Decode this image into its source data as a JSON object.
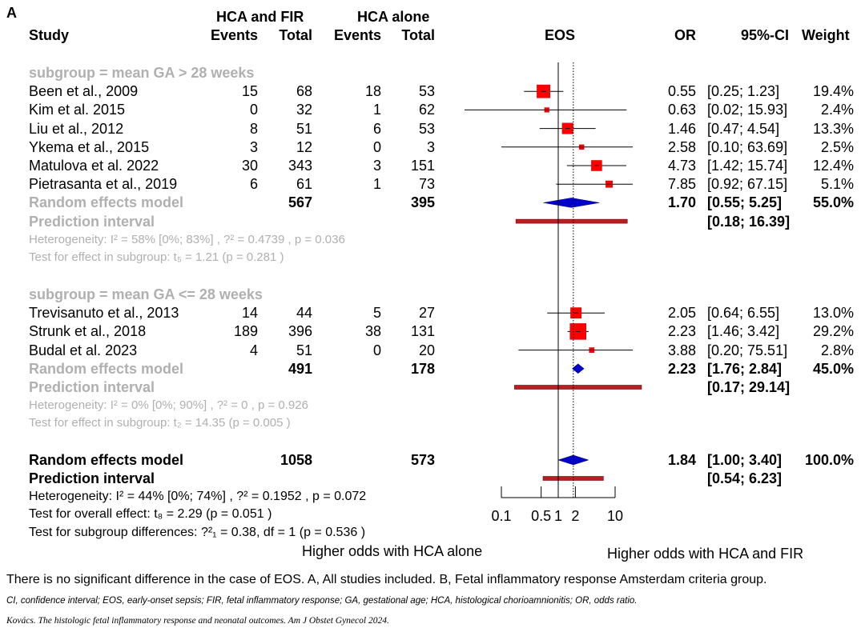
{
  "panel_label": "A",
  "headers": {
    "study": "Study",
    "group1": "HCA and FIR",
    "group2": "HCA alone",
    "events": "Events",
    "total": "Total",
    "outcome": "EOS",
    "or": "OR",
    "ci": "95%-CI",
    "weight": "Weight"
  },
  "chart_data": {
    "type": "forest",
    "scale": "log",
    "x_ticks": [
      0.1,
      0.5,
      1,
      2,
      10
    ],
    "x_tick_labels": [
      "0.1",
      "0.5",
      "1",
      "2",
      "10"
    ],
    "null_value": 1,
    "overall_dotted_line": 1.84,
    "left_label": "Higher odds with HCA alone",
    "right_label": "Higher odds with HCA and FIR",
    "subgroups": [
      {
        "title": "subgroup = mean GA > 28 weeks",
        "studies": [
          {
            "name": "Been et al., 2009",
            "e1": "15",
            "t1": "68",
            "e2": "18",
            "t2": "53",
            "or": 0.55,
            "lo": 0.25,
            "hi": 1.23,
            "or_text": "0.55",
            "ci_text": "[0.25;  1.23]",
            "weight": "19.4%"
          },
          {
            "name": "Kim et al. 2015",
            "e1": "0",
            "t1": "32",
            "e2": "1",
            "t2": "62",
            "or": 0.63,
            "lo": 0.02,
            "hi": 15.93,
            "or_text": "0.63",
            "ci_text": "[0.02; 15.93]",
            "weight": "2.4%"
          },
          {
            "name": "Liu et al.,  2012",
            "e1": "8",
            "t1": "51",
            "e2": "6",
            "t2": "53",
            "or": 1.46,
            "lo": 0.47,
            "hi": 4.54,
            "or_text": "1.46",
            "ci_text": "[0.47;  4.54]",
            "weight": "13.3%"
          },
          {
            "name": "Ykema et al., 2015",
            "e1": "3",
            "t1": "12",
            "e2": "0",
            "t2": "3",
            "or": 2.58,
            "lo": 0.1,
            "hi": 63.69,
            "or_text": "2.58",
            "ci_text": "[0.10; 63.69]",
            "weight": "2.5%"
          },
          {
            "name": "Matulova et al. 2022",
            "e1": "30",
            "t1": "343",
            "e2": "3",
            "t2": "151",
            "or": 4.73,
            "lo": 1.42,
            "hi": 15.74,
            "or_text": "4.73",
            "ci_text": "[1.42; 15.74]",
            "weight": "12.4%"
          },
          {
            "name": "Pietrasanta et al., 2019",
            "e1": "6",
            "t1": "61",
            "e2": "1",
            "t2": "73",
            "or": 7.85,
            "lo": 0.92,
            "hi": 67.15,
            "or_text": "7.85",
            "ci_text": "[0.92; 67.15]",
            "weight": "5.1%"
          }
        ],
        "random": {
          "label": "Random effects model",
          "t1": "567",
          "t2": "395",
          "or": 1.7,
          "lo": 0.55,
          "hi": 5.25,
          "or_text": "1.70",
          "ci_text": "[0.55;  5.25]",
          "weight": "55.0%"
        },
        "prediction": {
          "label": "Prediction interval",
          "lo": 0.18,
          "hi": 16.39,
          "ci_text": "[0.18; 16.39]"
        },
        "heterogeneity": "Heterogeneity:  I² = 58% [0%; 83%] , ?² = 0.4739 , p = 0.036",
        "effect_test": "Test for effect in subgroup:  t₅ = 1.21 (p = 0.281 )"
      },
      {
        "title": "subgroup = mean GA <= 28 weeks",
        "studies": [
          {
            "name": "Trevisanuto et al., 2013",
            "e1": "14",
            "t1": "44",
            "e2": "5",
            "t2": "27",
            "or": 2.05,
            "lo": 0.64,
            "hi": 6.55,
            "or_text": "2.05",
            "ci_text": "[0.64;  6.55]",
            "weight": "13.0%"
          },
          {
            "name": "Strunk et al., 2018",
            "e1": "189",
            "t1": "396",
            "e2": "38",
            "t2": "131",
            "or": 2.23,
            "lo": 1.46,
            "hi": 3.42,
            "or_text": "2.23",
            "ci_text": "[1.46;  3.42]",
            "weight": "29.2%"
          },
          {
            "name": "Budal et al. 2023",
            "e1": "4",
            "t1": "51",
            "e2": "0",
            "t2": "20",
            "or": 3.88,
            "lo": 0.2,
            "hi": 75.51,
            "or_text": "3.88",
            "ci_text": "[0.20; 75.51]",
            "weight": "2.8%"
          }
        ],
        "random": {
          "label": "Random effects model",
          "t1": "491",
          "t2": "178",
          "or": 2.23,
          "lo": 1.76,
          "hi": 2.84,
          "or_text": "2.23",
          "ci_text": "[1.76;  2.84]",
          "weight": "45.0%"
        },
        "prediction": {
          "label": "Prediction interval",
          "lo": 0.17,
          "hi": 29.14,
          "ci_text": "[0.17; 29.14]"
        },
        "heterogeneity": "Heterogeneity:  I² = 0% [0%; 90%] , ?² = 0 , p = 0.926",
        "effect_test": "Test for effect in subgroup:  t₂ = 14.35 (p = 0.005 )"
      }
    ],
    "overall": {
      "random": {
        "label": "Random effects model",
        "t1": "1058",
        "t2": "573",
        "or": 1.84,
        "lo": 1.0,
        "hi": 3.4,
        "or_text": "1.84",
        "ci_text": "[1.00;  3.40]",
        "weight": "100.0%"
      },
      "prediction": {
        "label": "Prediction interval",
        "lo": 0.54,
        "hi": 6.23,
        "ci_text": "[0.54;  6.23]"
      },
      "heterogeneity": "Heterogeneity:  I² = 44% [0%; 74%] , ?² = 0.1952 , p = 0.072",
      "overall_test": "Test for overall effect:  t₈ = 2.29 (p = 0.051 )",
      "subgroup_test": "Test for subgroup differences:  ?²₁ = 0.38, df = 1  (p = 0.536 )"
    },
    "colors": {
      "square": "#ff0000",
      "square_edge": "#cc0000",
      "diamond": "#0000cc",
      "prediction": "#b22222",
      "line": "#000000"
    }
  },
  "caption": "There is no significant difference in the case of EOS. A, All studies included. B, Fetal inflammatory response Amsterdam criteria group.",
  "abbreviations": "CI, confidence interval; EOS, early-onset sepsis; FIR, fetal inflammatory response; GA, gestational age; HCA, histological chorioamnionitis; OR, odds ratio.",
  "citation": "Kovács. The histologic fetal inflammatory response and neonatal outcomes. Am J Obstet Gynecol 2024."
}
